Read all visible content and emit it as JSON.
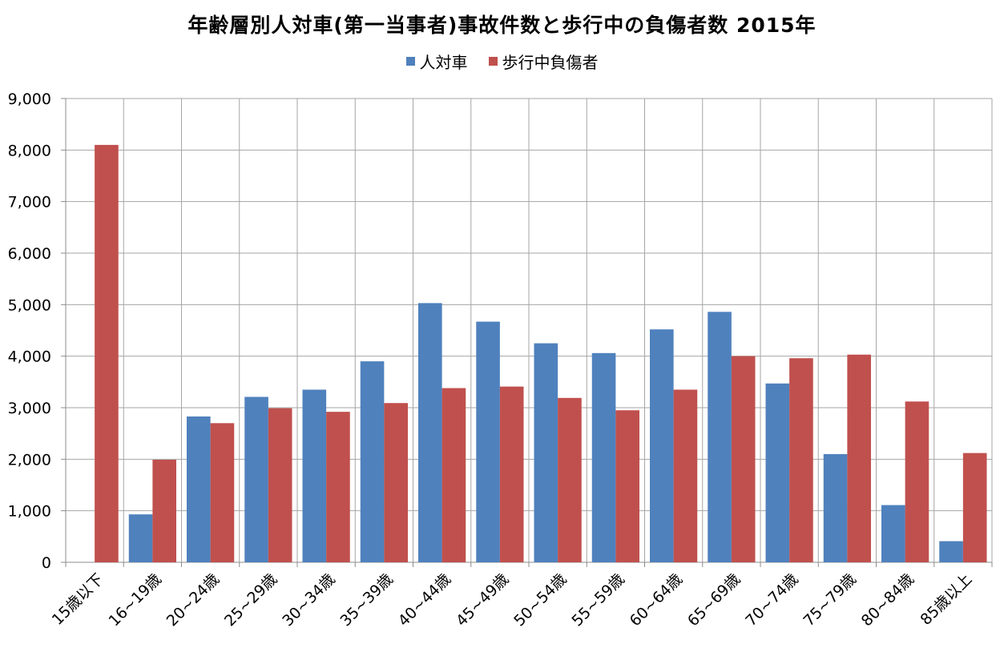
{
  "chart_data": {
    "type": "bar",
    "title": "年齢層別人対車(第一当事者)事故件数と歩行中の負傷者数 2015年",
    "categories": [
      "15歳以下",
      "16~19歳",
      "20~24歳",
      "25~29歳",
      "30~34歳",
      "35~39歳",
      "40~44歳",
      "45~49歳",
      "50~54歳",
      "55~59歳",
      "60~64歳",
      "65~69歳",
      "70~74歳",
      "75~79歳",
      "80~84歳",
      "85歳以上"
    ],
    "series": [
      {
        "name": "人対車",
        "color": "#4F81BD",
        "values": [
          0,
          930,
          2830,
          3210,
          3350,
          3900,
          5030,
          4670,
          4250,
          4060,
          4520,
          4860,
          3470,
          2100,
          1110,
          410
        ]
      },
      {
        "name": "歩行中負傷者",
        "color": "#C0504D",
        "values": [
          8100,
          1990,
          2700,
          2990,
          2920,
          3090,
          3380,
          3410,
          3190,
          2950,
          3350,
          4000,
          3960,
          4030,
          3120,
          2120
        ]
      }
    ],
    "ylim": [
      0,
      9000
    ],
    "yticks": [
      "0",
      "1,000",
      "2,000",
      "3,000",
      "4,000",
      "5,000",
      "6,000",
      "7,000",
      "8,000",
      "9,000"
    ],
    "xlabel": "",
    "ylabel": "",
    "grid": true,
    "legend_position": "top"
  }
}
